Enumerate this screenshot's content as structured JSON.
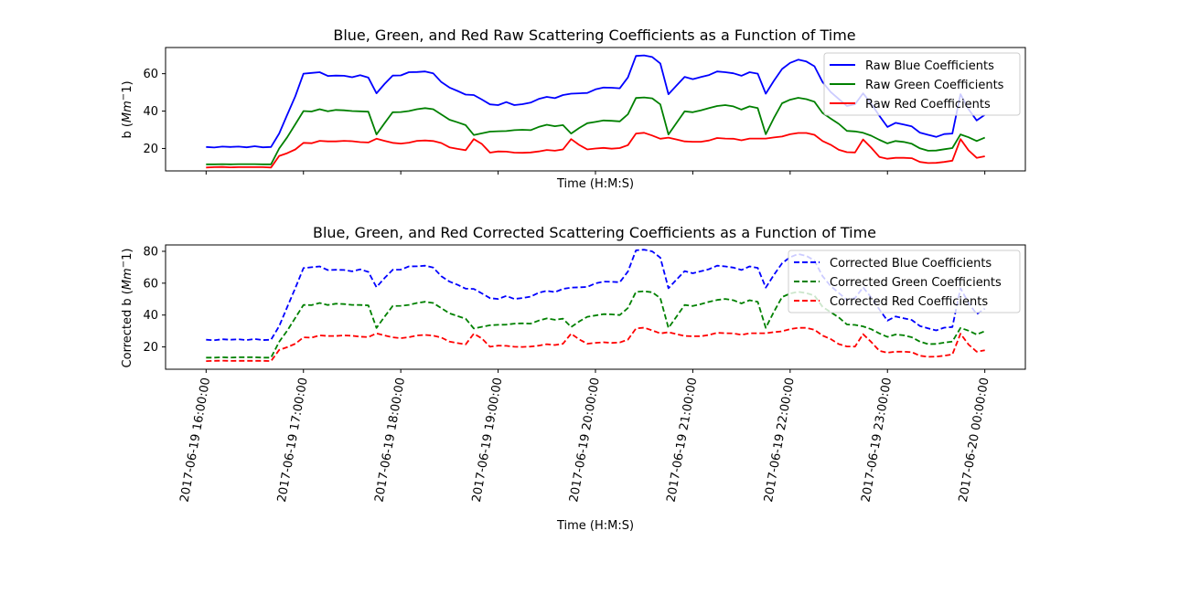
{
  "chart_data": [
    {
      "type": "line",
      "title": "Blue, Green, and Red Raw Scattering Coefficients as a Function of Time",
      "xlabel": "Time (H:M:S)",
      "ylabel": "b (Mm^-1)",
      "ylabel_parts": {
        "prefix": "b (",
        "italic": "Mm",
        "suffix": "1)",
        "sup": "−"
      },
      "xlim": [
        "2017-06-19 15:35:00",
        "2017-06-20 00:25:00"
      ],
      "ylim": [
        8,
        74
      ],
      "yticks": [
        20,
        40,
        60
      ],
      "ytick_labels": [
        "20",
        "40",
        "60"
      ],
      "x_tick_labels_visible": false,
      "grid": false,
      "legend_position": "top-right",
      "x": [
        "2017-06-19 16:00:00",
        "2017-06-19 16:05:00",
        "2017-06-19 16:10:00",
        "2017-06-19 16:15:00",
        "2017-06-19 16:20:00",
        "2017-06-19 16:25:00",
        "2017-06-19 16:30:00",
        "2017-06-19 16:35:00",
        "2017-06-19 16:40:00",
        "2017-06-19 16:45:00",
        "2017-06-19 16:50:00",
        "2017-06-19 16:55:00",
        "2017-06-19 17:00:00",
        "2017-06-19 17:05:00",
        "2017-06-19 17:10:00",
        "2017-06-19 17:15:00",
        "2017-06-19 17:20:00",
        "2017-06-19 17:25:00",
        "2017-06-19 17:30:00",
        "2017-06-19 17:35:00",
        "2017-06-19 17:40:00",
        "2017-06-19 17:45:00",
        "2017-06-19 17:50:00",
        "2017-06-19 17:55:00",
        "2017-06-19 18:00:00",
        "2017-06-19 18:05:00",
        "2017-06-19 18:10:00",
        "2017-06-19 18:15:00",
        "2017-06-19 18:20:00",
        "2017-06-19 18:25:00",
        "2017-06-19 18:30:00",
        "2017-06-19 18:35:00",
        "2017-06-19 18:40:00",
        "2017-06-19 18:45:00",
        "2017-06-19 18:50:00",
        "2017-06-19 18:55:00",
        "2017-06-19 19:00:00",
        "2017-06-19 19:05:00",
        "2017-06-19 19:10:00",
        "2017-06-19 19:15:00",
        "2017-06-19 19:20:00",
        "2017-06-19 19:25:00",
        "2017-06-19 19:30:00",
        "2017-06-19 19:35:00",
        "2017-06-19 19:40:00",
        "2017-06-19 19:45:00",
        "2017-06-19 19:50:00",
        "2017-06-19 19:55:00",
        "2017-06-19 20:00:00",
        "2017-06-19 20:05:00",
        "2017-06-19 20:10:00",
        "2017-06-19 20:15:00",
        "2017-06-19 20:20:00",
        "2017-06-19 20:25:00",
        "2017-06-19 20:30:00",
        "2017-06-19 20:35:00",
        "2017-06-19 20:40:00",
        "2017-06-19 20:45:00",
        "2017-06-19 20:50:00",
        "2017-06-19 20:55:00",
        "2017-06-19 21:00:00",
        "2017-06-19 21:05:00",
        "2017-06-19 21:10:00",
        "2017-06-19 21:15:00",
        "2017-06-19 21:20:00",
        "2017-06-19 21:25:00",
        "2017-06-19 21:30:00",
        "2017-06-19 21:35:00",
        "2017-06-19 21:40:00",
        "2017-06-19 21:45:00",
        "2017-06-19 21:50:00",
        "2017-06-19 21:55:00",
        "2017-06-19 22:00:00",
        "2017-06-19 22:05:00",
        "2017-06-19 22:10:00",
        "2017-06-19 22:15:00",
        "2017-06-19 22:20:00",
        "2017-06-19 22:25:00",
        "2017-06-19 22:30:00",
        "2017-06-19 22:35:00",
        "2017-06-19 22:40:00",
        "2017-06-19 22:45:00",
        "2017-06-19 22:50:00",
        "2017-06-19 22:55:00",
        "2017-06-19 23:00:00",
        "2017-06-19 23:05:00",
        "2017-06-19 23:10:00",
        "2017-06-19 23:15:00",
        "2017-06-19 23:20:00",
        "2017-06-19 23:25:00",
        "2017-06-19 23:30:00",
        "2017-06-19 23:35:00",
        "2017-06-19 23:40:00",
        "2017-06-19 23:45:00",
        "2017-06-19 23:50:00",
        "2017-06-19 23:55:00",
        "2017-06-20 00:00:00"
      ],
      "series": [
        {
          "name": "Raw Blue Coefficients",
          "color": "#0000ff",
          "dashed": false,
          "values": [
            20.8,
            20.5,
            21,
            20.8,
            21,
            20.6,
            21.2,
            20.6,
            20.8,
            28,
            38,
            48,
            60,
            60.4,
            60.8,
            58.8,
            59,
            58.9,
            58.1,
            59.2,
            57.9,
            49.5,
            54.5,
            59,
            59.1,
            60.8,
            60.9,
            61.2,
            60.2,
            55.5,
            52.6,
            50.8,
            48.8,
            48.6,
            46.2,
            43.6,
            43.2,
            44.8,
            43.2,
            43.7,
            44.5,
            46.5,
            47.6,
            46.9,
            48.6,
            49.3,
            49.5,
            49.7,
            51.6,
            52.6,
            52.5,
            52.2,
            58,
            69.5,
            69.8,
            68.9,
            65.5,
            49,
            53.7,
            58.3,
            57.1,
            58.2,
            59.3,
            61.2,
            60.8,
            60.2,
            58.9,
            60.8,
            60,
            49.3,
            56.2,
            62.5,
            65.8,
            67.5,
            66.5,
            64,
            55.5,
            50.2,
            46.5,
            42.7,
            43.7,
            49.5,
            44,
            37.5,
            31.5,
            33.7,
            32.8,
            31.8,
            28.5,
            27.3,
            26.2,
            27.7,
            28,
            49,
            41,
            35,
            38
          ]
        },
        {
          "name": "Raw Green Coefficients",
          "color": "#008000",
          "dashed": false,
          "values": [
            11.5,
            11.5,
            11.6,
            11.5,
            11.6,
            11.6,
            11.6,
            11.5,
            11.5,
            20,
            26,
            33,
            40,
            39.8,
            41,
            39.9,
            40.6,
            40.4,
            40,
            39.9,
            39.7,
            27.5,
            33.5,
            39.4,
            39.5,
            40,
            41,
            41.6,
            41,
            38.2,
            35.4,
            34,
            32.5,
            27.2,
            28.1,
            29,
            29.2,
            29.3,
            29.8,
            30,
            29.8,
            31.5,
            32.7,
            31.9,
            32.5,
            28,
            31,
            33.5,
            34.2,
            35,
            34.8,
            34.5,
            38.3,
            47,
            47.3,
            46.8,
            43.6,
            27.5,
            33.7,
            39.9,
            39.4,
            40.4,
            41.6,
            42.7,
            43.2,
            42.5,
            40.8,
            42.5,
            41.6,
            27.6,
            36.3,
            44.2,
            46.1,
            47.1,
            46.4,
            45,
            39,
            36,
            33.2,
            29.4,
            29.1,
            28.4,
            26.8,
            24.6,
            22.7,
            24,
            23.5,
            22.5,
            20.1,
            18.8,
            18.9,
            19.6,
            20.2,
            27.5,
            26,
            24,
            25.8
          ]
        },
        {
          "name": "Raw Red Coefficients",
          "color": "#ff0000",
          "dashed": false,
          "values": [
            9.8,
            10,
            10.1,
            9.9,
            10,
            10,
            10,
            10,
            9.8,
            16,
            17.5,
            19.5,
            23,
            22.8,
            24.1,
            23.8,
            23.8,
            24.1,
            23.9,
            23.4,
            23.2,
            25.2,
            24.1,
            23,
            22.6,
            23.1,
            24.1,
            24.3,
            24,
            22.9,
            20.6,
            19.8,
            19.1,
            25,
            22.4,
            17.8,
            18.4,
            18.3,
            17.8,
            17.7,
            17.9,
            18.4,
            19.2,
            18.8,
            19.5,
            25,
            21.9,
            19.5,
            20,
            20.3,
            19.9,
            20.2,
            21.8,
            28,
            28.4,
            26.9,
            25.2,
            25.8,
            24.8,
            23.8,
            23.6,
            23.6,
            24.3,
            25.6,
            25.3,
            25.2,
            24.4,
            25.3,
            25.3,
            25.3,
            25.9,
            26.4,
            27.6,
            28.3,
            28.3,
            27.3,
            24,
            22,
            19.3,
            18,
            17.9,
            24.8,
            20.4,
            15.5,
            14.5,
            15,
            15,
            14.8,
            12.8,
            12.2,
            12.3,
            12.8,
            13.5,
            25,
            19,
            15,
            15.8
          ]
        }
      ]
    },
    {
      "type": "line",
      "title": "Blue, Green, and Red Corrected Scattering Coefficients as a Function of Time",
      "xlabel": "Time (H:M:S)",
      "ylabel": "Corrected b (Mm^-1)",
      "ylabel_parts": {
        "prefix": "Corrected b (",
        "italic": "Mm",
        "suffix": "1)",
        "sup": "−"
      },
      "xlim": [
        "2017-06-19 15:35:00",
        "2017-06-20 00:25:00"
      ],
      "ylim": [
        6,
        84
      ],
      "yticks": [
        20,
        40,
        60,
        80
      ],
      "ytick_labels": [
        "20",
        "40",
        "60",
        "80"
      ],
      "xticks": [
        "2017-06-19 16:00:00",
        "2017-06-19 17:00:00",
        "2017-06-19 18:00:00",
        "2017-06-19 19:00:00",
        "2017-06-19 20:00:00",
        "2017-06-19 21:00:00",
        "2017-06-19 22:00:00",
        "2017-06-19 23:00:00",
        "2017-06-20 00:00:00"
      ],
      "xtick_labels": [
        "2017-06-19 16:00:00",
        "2017-06-19 17:00:00",
        "2017-06-19 18:00:00",
        "2017-06-19 19:00:00",
        "2017-06-19 20:00:00",
        "2017-06-19 21:00:00",
        "2017-06-19 22:00:00",
        "2017-06-19 23:00:00",
        "2017-06-20 00:00:00"
      ],
      "grid": false,
      "legend_position": "top-right",
      "series": [
        {
          "name": "Corrected Blue Coefficients",
          "color": "#0000ff",
          "dashed": true,
          "values": [
            24.5,
            24.2,
            24.8,
            24.5,
            24.8,
            24.3,
            25,
            24.3,
            24.5,
            33,
            45,
            57,
            69.5,
            70,
            70.5,
            68.2,
            68.4,
            68.3,
            67.4,
            68.7,
            67.1,
            57.5,
            63.2,
            68.4,
            68.5,
            70.5,
            70.6,
            71,
            69.8,
            64.4,
            61,
            59,
            56.6,
            56.4,
            53.6,
            50.6,
            50.1,
            52,
            50.1,
            50.7,
            51.6,
            54,
            55.2,
            54.4,
            56.4,
            57.2,
            57.4,
            57.7,
            59.9,
            61,
            60.9,
            60.6,
            67.3,
            80.6,
            81,
            79.9,
            76,
            56.8,
            62.3,
            67.6,
            66.2,
            67.5,
            68.8,
            71,
            70.5,
            69.8,
            68.3,
            70.5,
            69.6,
            57.2,
            65.2,
            72.5,
            76.3,
            78.3,
            77.1,
            74.2,
            64.4,
            58.2,
            53.9,
            49.5,
            50.7,
            57.4,
            51,
            43.5,
            36.5,
            39.1,
            38,
            36.9,
            33.1,
            31.7,
            30.4,
            32.1,
            32.5,
            56.8,
            47.6,
            40.6,
            44
          ]
        },
        {
          "name": "Corrected Green Coefficients",
          "color": "#008000",
          "dashed": true,
          "values": [
            13.3,
            13.3,
            13.5,
            13.3,
            13.5,
            13.5,
            13.5,
            13.3,
            13.3,
            23.2,
            30.2,
            38.3,
            46.4,
            46.2,
            47.6,
            46.3,
            47.1,
            46.9,
            46.4,
            46.3,
            46.1,
            31.9,
            38.9,
            45.7,
            45.8,
            46.4,
            47.6,
            48.3,
            47.6,
            44.3,
            41.1,
            39.4,
            37.7,
            31.6,
            32.6,
            33.6,
            33.9,
            34,
            34.6,
            34.8,
            34.6,
            36.5,
            37.9,
            37,
            37.7,
            32.5,
            36,
            38.9,
            39.7,
            40.6,
            40.4,
            40,
            44.4,
            54.5,
            54.9,
            54.3,
            50.6,
            31.9,
            39.1,
            46.3,
            45.7,
            46.9,
            48.3,
            49.5,
            50.1,
            49.3,
            47.3,
            49.3,
            48.3,
            32,
            42.1,
            51.3,
            53.5,
            54.6,
            53.8,
            52.2,
            45.2,
            41.8,
            38.5,
            34.1,
            33.8,
            32.9,
            31.1,
            28.5,
            26.3,
            27.8,
            27.3,
            26.1,
            23.3,
            21.8,
            21.9,
            22.7,
            23.4,
            31.9,
            30.2,
            27.8,
            29.9
          ]
        },
        {
          "name": "Corrected Red Coefficients",
          "color": "#ff0000",
          "dashed": true,
          "values": [
            11.1,
            11.3,
            11.4,
            11.2,
            11.3,
            11.3,
            11.3,
            11.3,
            11.1,
            18.1,
            19.8,
            22,
            26,
            25.8,
            27.2,
            26.9,
            26.9,
            27.2,
            27,
            26.4,
            26.2,
            28.5,
            27.2,
            26,
            25.5,
            26.1,
            27.2,
            27.5,
            27.1,
            25.9,
            23.3,
            22.4,
            21.6,
            28.3,
            25.3,
            20.1,
            20.8,
            20.7,
            20.1,
            20,
            20.2,
            20.8,
            21.7,
            21.2,
            22,
            28.3,
            24.7,
            22,
            22.6,
            22.9,
            22.5,
            22.8,
            24.6,
            31.6,
            32.1,
            30.4,
            28.5,
            29.2,
            28,
            26.9,
            26.7,
            26.7,
            27.5,
            28.9,
            28.6,
            28.5,
            27.6,
            28.6,
            28.6,
            28.6,
            29.3,
            29.8,
            31.2,
            32,
            32,
            30.8,
            27.1,
            24.9,
            21.8,
            20.3,
            20.2,
            28,
            23.1,
            17.5,
            16.4,
            17,
            17,
            16.7,
            14.5,
            13.8,
            13.9,
            14.5,
            15.3,
            28.3,
            21.5,
            17,
            17.9
          ]
        }
      ]
    }
  ]
}
